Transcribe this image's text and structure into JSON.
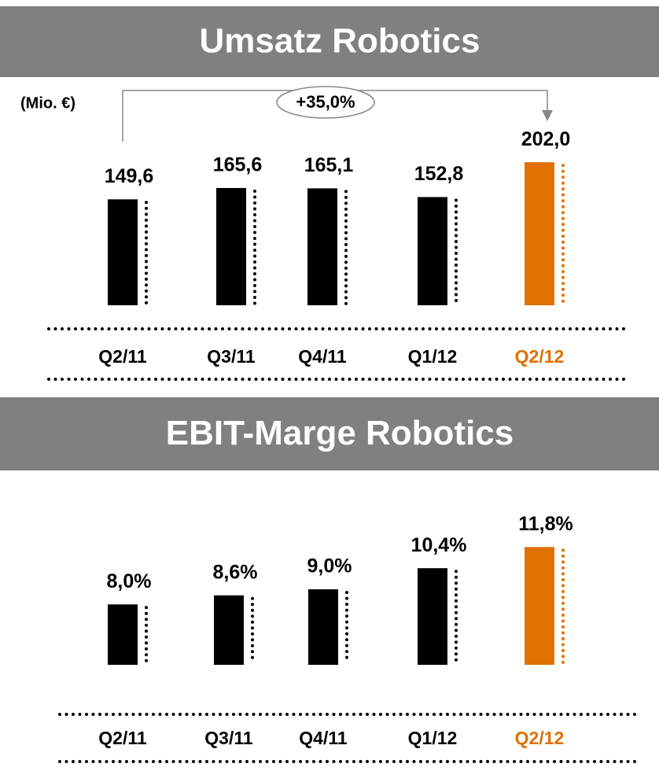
{
  "chart_data": [
    {
      "type": "bar",
      "title": "Umsatz Robotics",
      "unit_label": "(Mio. €)",
      "annotation": "+35,0%",
      "categories": [
        "Q2/11",
        "Q3/11",
        "Q4/11",
        "Q1/12",
        "Q2/12"
      ],
      "values": [
        149.6,
        165.6,
        165.1,
        152.8,
        202.0
      ],
      "value_labels": [
        "149,6",
        "165,6",
        "165,1",
        "152,8",
        "202,0"
      ],
      "colors": [
        "#000000",
        "#000000",
        "#000000",
        "#000000",
        "#e07000"
      ],
      "ylim": [
        0,
        220
      ]
    },
    {
      "type": "bar",
      "title": "EBIT-Marge Robotics",
      "categories": [
        "Q2/11",
        "Q3/11",
        "Q4/11",
        "Q1/12",
        "Q2/12"
      ],
      "values": [
        8.0,
        8.6,
        9.0,
        10.4,
        11.8
      ],
      "value_labels": [
        "8,0%",
        "8,6%",
        "9,0%",
        "10,4%",
        "11,8%"
      ],
      "colors": [
        "#000000",
        "#000000",
        "#000000",
        "#000000",
        "#e07000"
      ],
      "ylim": [
        4,
        12.6
      ]
    }
  ]
}
